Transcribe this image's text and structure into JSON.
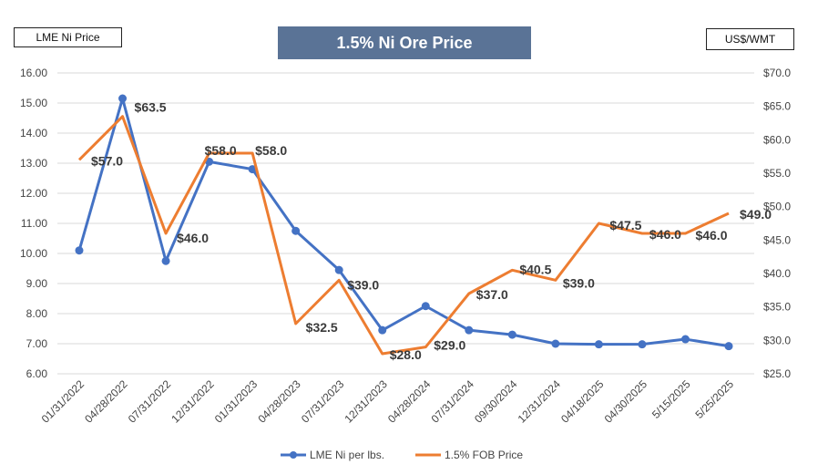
{
  "chart_data": {
    "type": "line",
    "title": "1.5% Ni Ore Price",
    "left_axis_label": "LME Ni Price",
    "right_axis_label": "US$/WMT",
    "categories": [
      "01/31/2022",
      "04/28/2022",
      "07/31/2022",
      "12/31/2022",
      "01/31/2023",
      "04/28/2023",
      "07/31/2023",
      "12/31/2023",
      "04/28/2024",
      "07/31/2024",
      "09/30/2024",
      "12/31/2024",
      "04/18/2025",
      "04/30/2025",
      "5/15/2025",
      "5/25/2025"
    ],
    "y_left": {
      "min": 6,
      "max": 16,
      "ticks": [
        "6.00",
        "7.00",
        "8.00",
        "9.00",
        "10.00",
        "11.00",
        "12.00",
        "13.00",
        "14.00",
        "15.00",
        "16.00"
      ]
    },
    "y_right": {
      "min": 25,
      "max": 70,
      "ticks": [
        "$25.0",
        "$30.0",
        "$35.0",
        "$40.0",
        "$45.0",
        "$50.0",
        "$55.0",
        "$60.0",
        "$65.0",
        "$70.0"
      ]
    },
    "series": [
      {
        "name": "LME Ni per lbs.",
        "axis": "left",
        "color": "#4472c4",
        "values": [
          10.1,
          15.15,
          9.75,
          13.05,
          12.8,
          10.75,
          9.45,
          7.45,
          8.25,
          7.45,
          7.3,
          7.0,
          6.98,
          6.98,
          7.15,
          6.92
        ]
      },
      {
        "name": "1.5% FOB Price",
        "axis": "right",
        "color": "#ed7d31",
        "values": [
          57.0,
          63.5,
          46.0,
          58.0,
          58.0,
          32.5,
          39.0,
          28.0,
          29.0,
          37.0,
          40.5,
          39.0,
          47.5,
          46.0,
          46.0,
          49.0
        ],
        "data_labels": [
          "$57.0",
          "$63.5",
          "$46.0",
          "$58.0",
          "$58.0",
          "$32.5",
          "$39.0",
          "$28.0",
          "$29.0",
          "$37.0",
          "$40.5",
          "$39.0",
          "$47.5",
          "$46.0",
          "$46.0",
          "$49.0"
        ]
      }
    ],
    "gridlines": true,
    "legend": "bottom"
  }
}
